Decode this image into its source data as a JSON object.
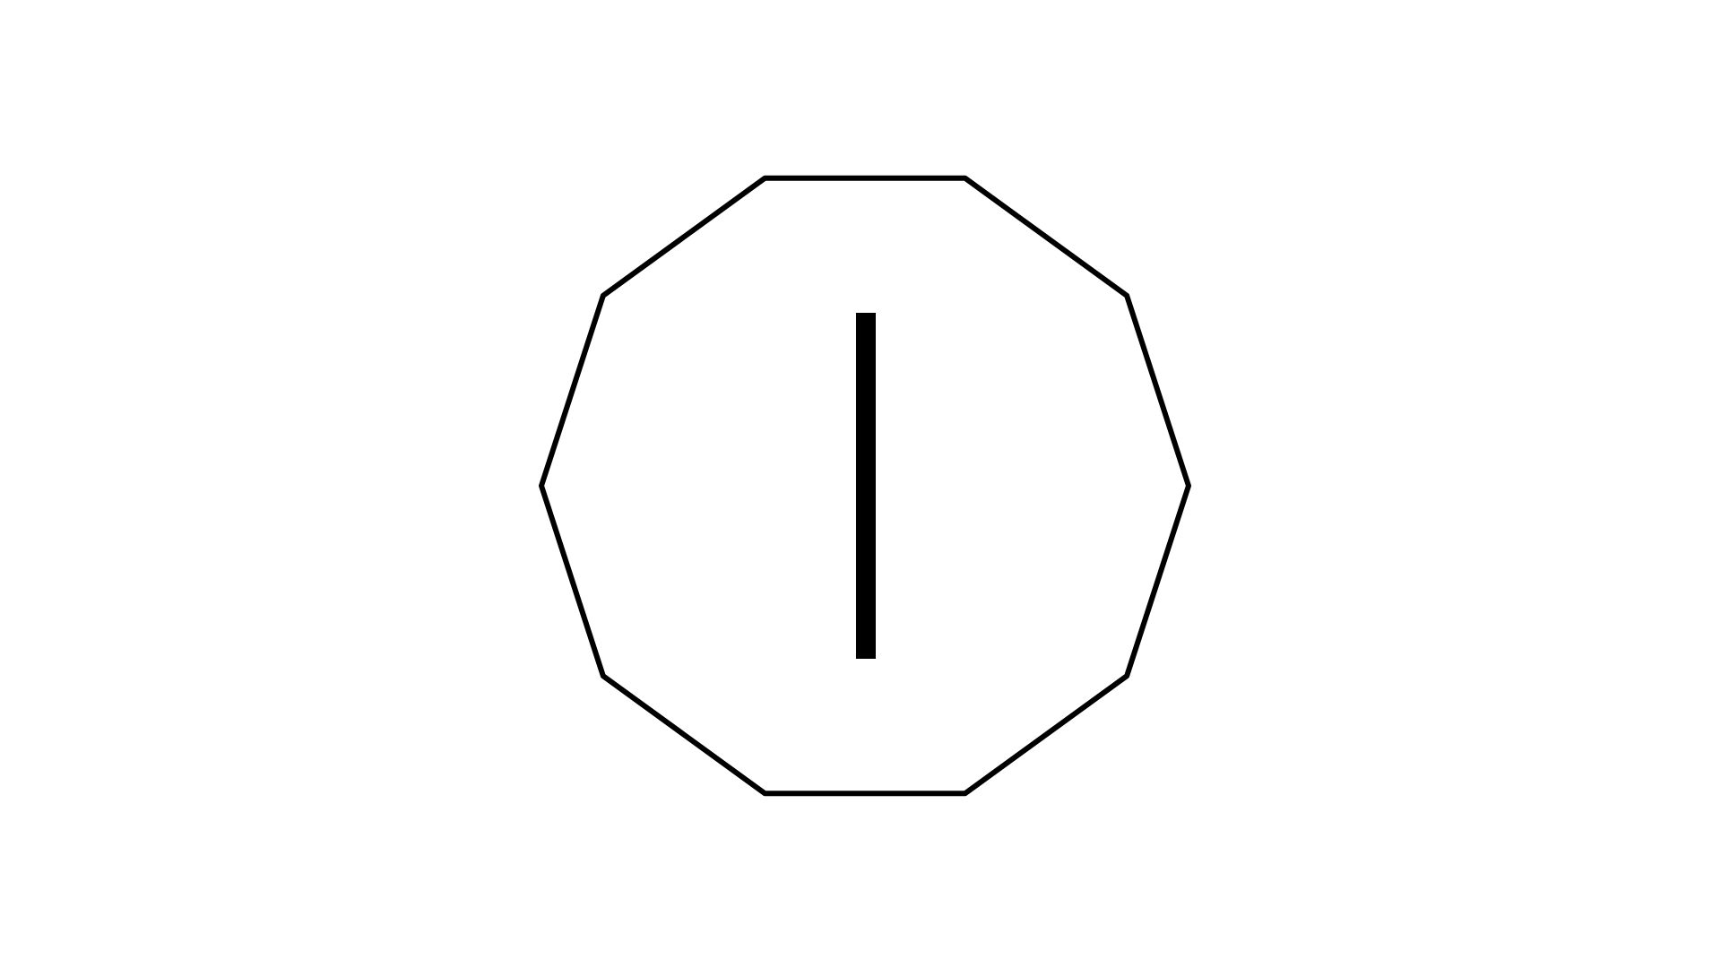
{
  "diagram": {
    "shape": "decagon",
    "sides": 10,
    "inner_mark": "vertical-bar",
    "colors": {
      "background": "#ffffff",
      "stroke": "#000000"
    }
  }
}
